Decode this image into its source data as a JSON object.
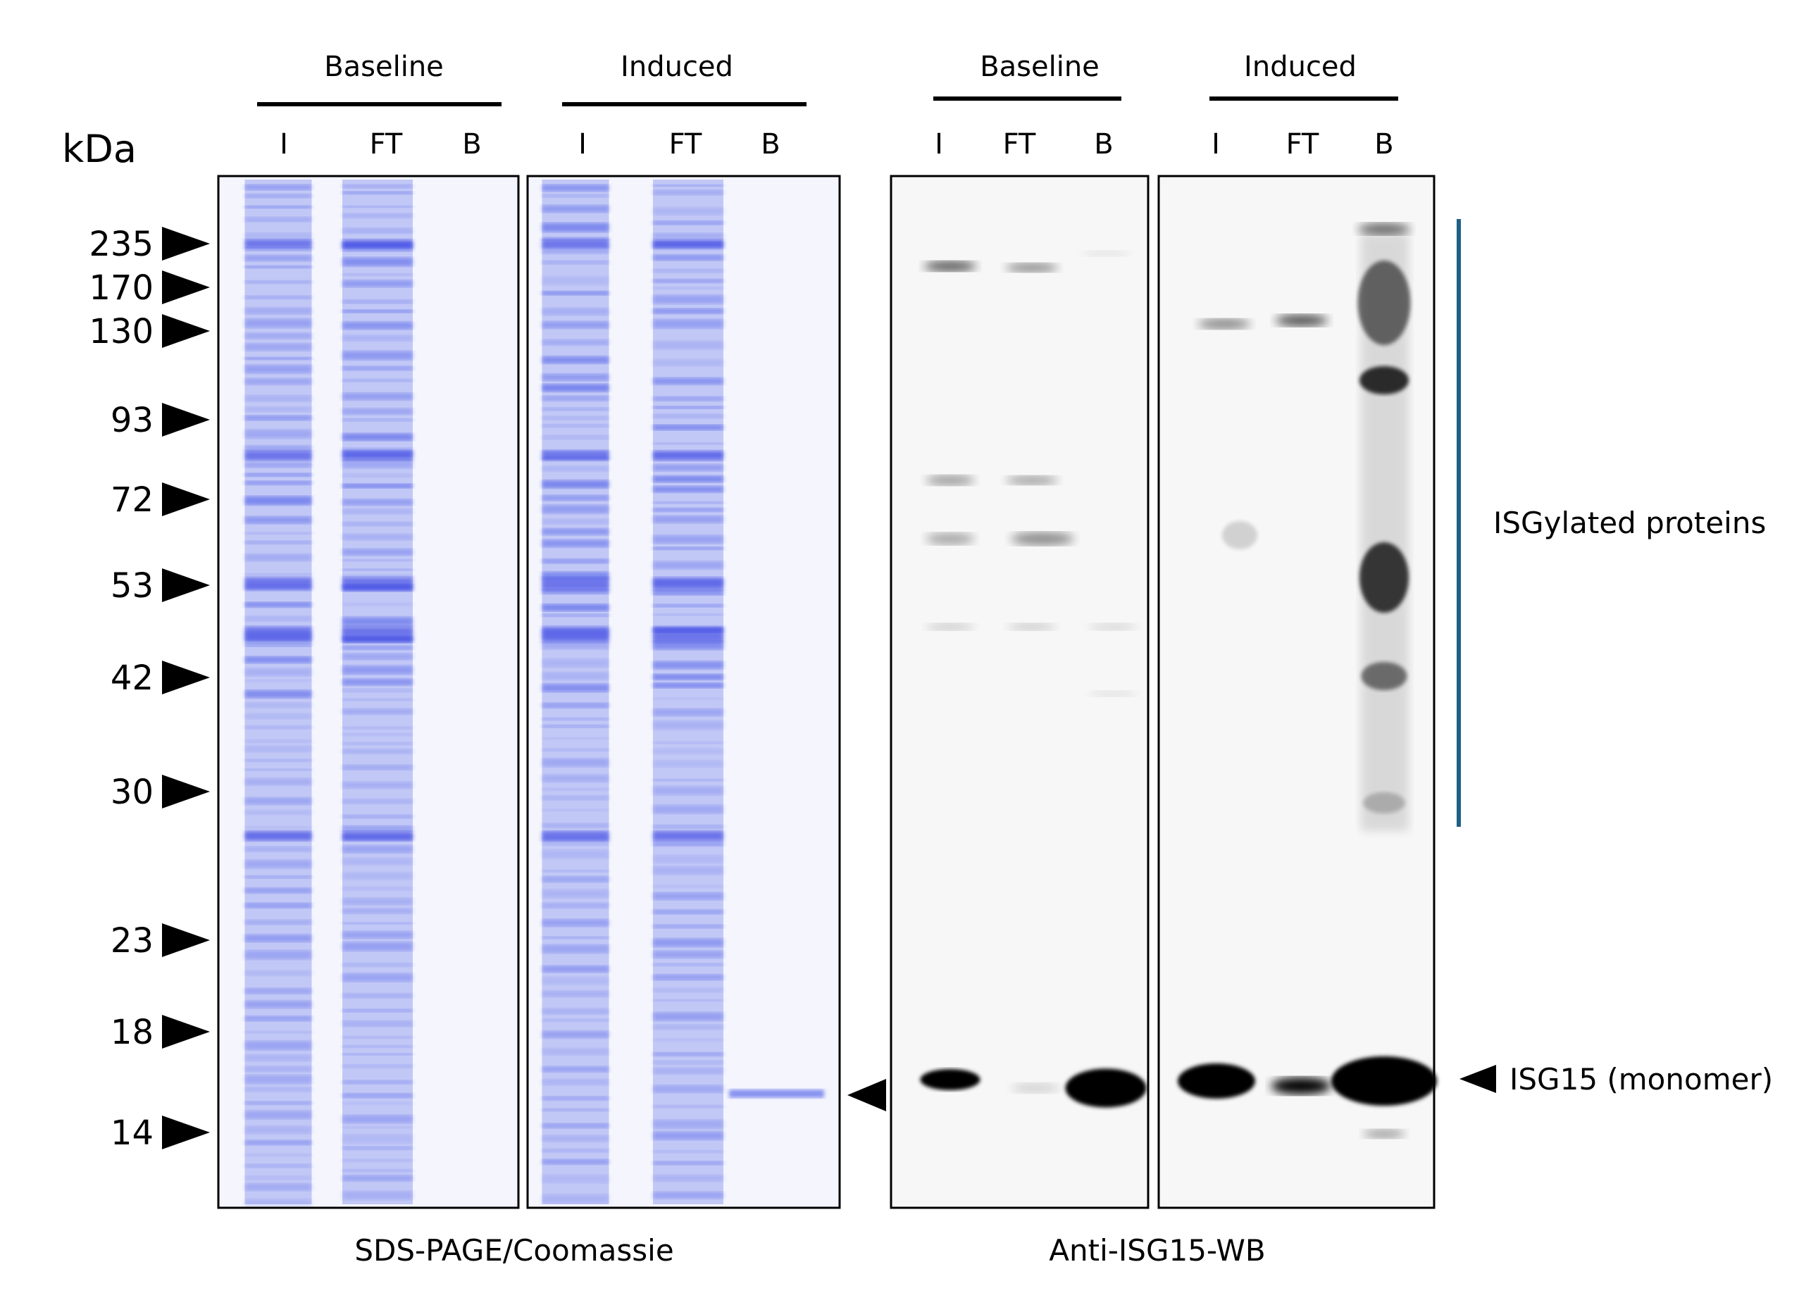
{
  "coomassie": {
    "caption": "SDS-PAGE/Coomassie",
    "unit_label": "kDa",
    "groups": [
      {
        "label": "Baseline",
        "lanes": [
          "I",
          "FT",
          "B"
        ]
      },
      {
        "label": "Induced",
        "lanes": [
          "I",
          "FT",
          "B"
        ]
      }
    ],
    "markers": [
      "235",
      "170",
      "130",
      "93",
      "72",
      "53",
      "42",
      "30",
      "23",
      "18",
      "14"
    ],
    "stain_color": "#3f51e6"
  },
  "western": {
    "caption": "Anti-ISG15-WB",
    "groups": [
      {
        "label": "Baseline",
        "lanes": [
          "I",
          "FT",
          "B"
        ]
      },
      {
        "label": "Induced",
        "lanes": [
          "I",
          "FT",
          "B"
        ]
      }
    ],
    "annotations": {
      "isgylated": "ISGylated proteins",
      "monomer": "ISG15 (monomer)"
    },
    "bracket_color": "#1f5f85"
  }
}
